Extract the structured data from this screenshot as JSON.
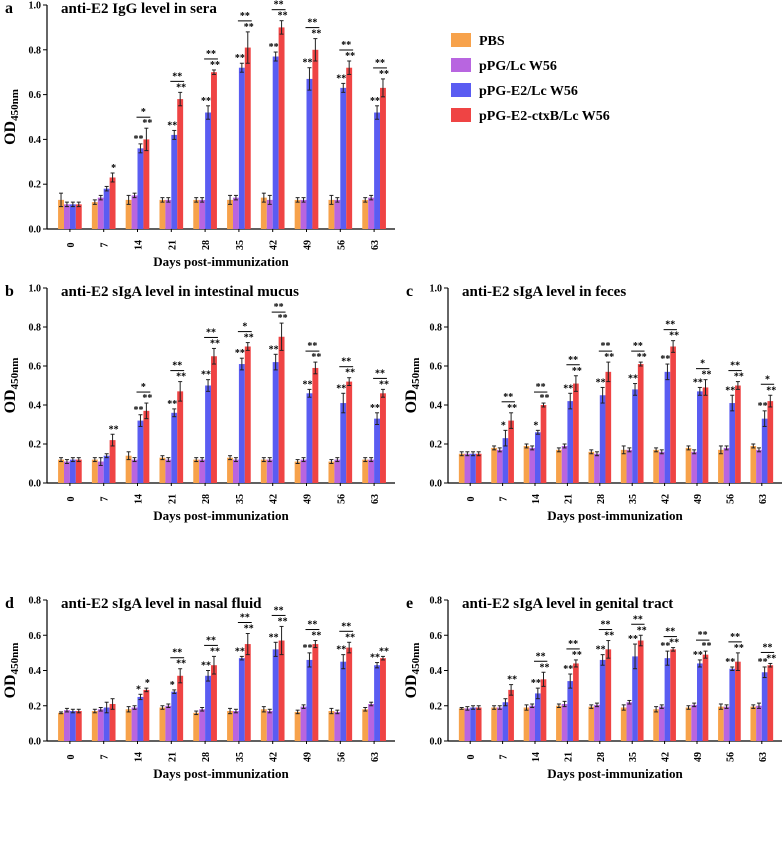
{
  "figure": {
    "legend": [
      {
        "name": "PBS",
        "color": "#F7A24B"
      },
      {
        "name": "pPG/Lc W56",
        "color": "#B865E0"
      },
      {
        "name": "pPG-E2/Lc W56",
        "color": "#5A5CF2"
      },
      {
        "name": "pPG-E2-ctxB/Lc W56",
        "color": "#EF4444"
      }
    ]
  },
  "chart_data": [
    {
      "panel": "a",
      "type": "bar",
      "title": "anti-E2 IgG level in sera",
      "xlabel": "Days post-immunization",
      "ylabel": "OD",
      "ylabel_sub": "450nm",
      "ylim": [
        0,
        1.0
      ],
      "yticks": [
        "0.0",
        "0.2",
        "0.4",
        "0.6",
        "0.8",
        "1.0"
      ],
      "categories": [
        "0",
        "7",
        "14",
        "21",
        "28",
        "35",
        "42",
        "49",
        "56",
        "63"
      ],
      "series": [
        {
          "name": "PBS",
          "values": [
            0.13,
            0.12,
            0.13,
            0.13,
            0.13,
            0.13,
            0.14,
            0.13,
            0.13,
            0.13
          ],
          "errors": [
            0.03,
            0.01,
            0.02,
            0.01,
            0.01,
            0.02,
            0.02,
            0.01,
            0.02,
            0.01
          ]
        },
        {
          "name": "pPG/Lc W56",
          "values": [
            0.11,
            0.14,
            0.15,
            0.13,
            0.13,
            0.14,
            0.13,
            0.13,
            0.13,
            0.14
          ],
          "errors": [
            0.01,
            0.01,
            0.01,
            0.01,
            0.01,
            0.01,
            0.02,
            0.01,
            0.01,
            0.01
          ]
        },
        {
          "name": "pPG-E2/Lc W56",
          "values": [
            0.11,
            0.18,
            0.36,
            0.42,
            0.52,
            0.72,
            0.77,
            0.67,
            0.63,
            0.52
          ],
          "errors": [
            0.01,
            0.01,
            0.02,
            0.02,
            0.03,
            0.02,
            0.02,
            0.05,
            0.02,
            0.03
          ]
        },
        {
          "name": "pPG-E2-ctxB/Lc W56",
          "values": [
            0.11,
            0.23,
            0.4,
            0.58,
            0.7,
            0.81,
            0.9,
            0.8,
            0.72,
            0.63
          ],
          "errors": [
            0.01,
            0.02,
            0.05,
            0.03,
            0.01,
            0.07,
            0.03,
            0.05,
            0.03,
            0.04
          ]
        }
      ],
      "significance": [
        {
          "c": null,
          "g": "",
          "r": ""
        },
        {
          "c": null,
          "g": "",
          "r": "*"
        },
        {
          "c": "*",
          "g": "**",
          "r": "**"
        },
        {
          "c": "**",
          "g": "**",
          "r": "**"
        },
        {
          "c": "**",
          "g": "**",
          "r": "**"
        },
        {
          "c": "**",
          "g": "**",
          "r": "**"
        },
        {
          "c": "**",
          "g": "**",
          "r": "**"
        },
        {
          "c": "**",
          "g": "**",
          "r": "**"
        },
        {
          "c": "**",
          "g": "**",
          "r": "**"
        },
        {
          "c": "**",
          "g": "**",
          "r": "**"
        }
      ]
    },
    {
      "panel": "b",
      "type": "bar",
      "title": "anti-E2 sIgA level in intestinal mucus",
      "xlabel": "Days post-immunization",
      "ylabel": "OD",
      "ylabel_sub": "450nm",
      "ylim": [
        0,
        1.0
      ],
      "yticks": [
        "0.0",
        "0.2",
        "0.4",
        "0.6",
        "0.8",
        "1.0"
      ],
      "categories": [
        "0",
        "7",
        "14",
        "21",
        "28",
        "35",
        "42",
        "49",
        "56",
        "63"
      ],
      "series": [
        {
          "name": "PBS",
          "values": [
            0.12,
            0.12,
            0.14,
            0.13,
            0.12,
            0.13,
            0.12,
            0.11,
            0.11,
            0.12
          ],
          "errors": [
            0.01,
            0.01,
            0.02,
            0.01,
            0.01,
            0.01,
            0.01,
            0.01,
            0.01,
            0.01
          ]
        },
        {
          "name": "pPG/Lc W56",
          "values": [
            0.11,
            0.11,
            0.12,
            0.12,
            0.12,
            0.12,
            0.12,
            0.12,
            0.12,
            0.12
          ],
          "errors": [
            0.01,
            0.02,
            0.01,
            0.01,
            0.01,
            0.01,
            0.01,
            0.01,
            0.01,
            0.01
          ]
        },
        {
          "name": "pPG-E2/Lc W56",
          "values": [
            0.12,
            0.14,
            0.32,
            0.36,
            0.5,
            0.61,
            0.62,
            0.46,
            0.41,
            0.33
          ],
          "errors": [
            0.01,
            0.01,
            0.03,
            0.02,
            0.03,
            0.03,
            0.04,
            0.02,
            0.05,
            0.03
          ]
        },
        {
          "name": "pPG-E2-ctxB/Lc W56",
          "values": [
            0.12,
            0.22,
            0.37,
            0.47,
            0.65,
            0.7,
            0.75,
            0.59,
            0.52,
            0.46
          ],
          "errors": [
            0.01,
            0.03,
            0.04,
            0.05,
            0.04,
            0.02,
            0.07,
            0.03,
            0.02,
            0.02
          ]
        }
      ],
      "significance": [
        {
          "c": null,
          "g": "",
          "r": ""
        },
        {
          "c": null,
          "g": "",
          "r": "**"
        },
        {
          "c": "*",
          "g": "**",
          "r": "**"
        },
        {
          "c": "**",
          "g": "**",
          "r": "**"
        },
        {
          "c": "**",
          "g": "**",
          "r": "**"
        },
        {
          "c": "*",
          "g": "**",
          "r": "**"
        },
        {
          "c": "**",
          "g": "**",
          "r": "**"
        },
        {
          "c": "**",
          "g": "**",
          "r": "**"
        },
        {
          "c": "**",
          "g": "**",
          "r": "**"
        },
        {
          "c": "**",
          "g": "**",
          "r": "**"
        }
      ]
    },
    {
      "panel": "c",
      "type": "bar",
      "title": "anti-E2 sIgA level in feces",
      "xlabel": "Days post-immunization",
      "ylabel": "OD",
      "ylabel_sub": "450nm",
      "ylim": [
        0,
        1.0
      ],
      "yticks": [
        "0.0",
        "0.2",
        "0.4",
        "0.6",
        "0.8",
        "1.0"
      ],
      "categories": [
        "0",
        "7",
        "14",
        "21",
        "28",
        "35",
        "42",
        "49",
        "56",
        "63"
      ],
      "series": [
        {
          "name": "PBS",
          "values": [
            0.15,
            0.18,
            0.19,
            0.17,
            0.16,
            0.17,
            0.17,
            0.18,
            0.17,
            0.19
          ],
          "errors": [
            0.01,
            0.01,
            0.01,
            0.01,
            0.01,
            0.02,
            0.01,
            0.01,
            0.02,
            0.01
          ]
        },
        {
          "name": "pPG/Lc W56",
          "values": [
            0.15,
            0.17,
            0.18,
            0.19,
            0.15,
            0.17,
            0.16,
            0.16,
            0.18,
            0.17
          ],
          "errors": [
            0.01,
            0.01,
            0.01,
            0.01,
            0.01,
            0.01,
            0.01,
            0.01,
            0.01,
            0.01
          ]
        },
        {
          "name": "pPG-E2/Lc W56",
          "values": [
            0.15,
            0.23,
            0.26,
            0.42,
            0.45,
            0.48,
            0.57,
            0.47,
            0.41,
            0.33
          ],
          "errors": [
            0.01,
            0.04,
            0.01,
            0.04,
            0.04,
            0.03,
            0.04,
            0.02,
            0.04,
            0.04
          ]
        },
        {
          "name": "pPG-E2-ctxB/Lc W56",
          "values": [
            0.15,
            0.32,
            0.4,
            0.51,
            0.57,
            0.61,
            0.7,
            0.49,
            0.5,
            0.42
          ],
          "errors": [
            0.01,
            0.04,
            0.01,
            0.04,
            0.05,
            0.01,
            0.03,
            0.04,
            0.02,
            0.03
          ]
        }
      ],
      "significance": [
        {
          "c": null,
          "g": "",
          "r": ""
        },
        {
          "c": "**",
          "g": "*",
          "r": "**"
        },
        {
          "c": "**",
          "g": "*",
          "r": "**"
        },
        {
          "c": "**",
          "g": "**",
          "r": "**"
        },
        {
          "c": "**",
          "g": "**",
          "r": "**"
        },
        {
          "c": "**",
          "g": "**",
          "r": "**"
        },
        {
          "c": "**",
          "g": "**",
          "r": "**"
        },
        {
          "c": "*",
          "g": "**",
          "r": "**"
        },
        {
          "c": "**",
          "g": "**",
          "r": "**"
        },
        {
          "c": "*",
          "g": "**",
          "r": "**"
        }
      ]
    },
    {
      "panel": "d",
      "type": "bar",
      "title": "anti-E2 sIgA level in nasal fluid",
      "xlabel": "Days post-immunization",
      "ylabel": "OD",
      "ylabel_sub": "450nm",
      "ylim": [
        0,
        0.8
      ],
      "yticks": [
        "0.0",
        "0.2",
        "0.4",
        "0.6",
        "0.8"
      ],
      "categories": [
        "0",
        "7",
        "14",
        "21",
        "28",
        "35",
        "42",
        "49",
        "56",
        "63"
      ],
      "series": [
        {
          "name": "PBS",
          "values": [
            0.16,
            0.17,
            0.18,
            0.19,
            0.16,
            0.17,
            0.18,
            0.165,
            0.17,
            0.18
          ],
          "errors": [
            0.005,
            0.01,
            0.015,
            0.01,
            0.01,
            0.015,
            0.015,
            0.01,
            0.015,
            0.01
          ]
        },
        {
          "name": "pPG/Lc W56",
          "values": [
            0.175,
            0.18,
            0.19,
            0.2,
            0.18,
            0.17,
            0.17,
            0.195,
            0.165,
            0.21
          ],
          "errors": [
            0.01,
            0.01,
            0.01,
            0.01,
            0.01,
            0.01,
            0.01,
            0.01,
            0.01,
            0.01
          ]
        },
        {
          "name": "pPG-E2/Lc W56",
          "values": [
            0.17,
            0.19,
            0.25,
            0.28,
            0.37,
            0.47,
            0.52,
            0.46,
            0.45,
            0.43
          ],
          "errors": [
            0.01,
            0.03,
            0.015,
            0.01,
            0.03,
            0.01,
            0.04,
            0.04,
            0.04,
            0.015
          ]
        },
        {
          "name": "pPG-E2-ctxB/Lc W56",
          "values": [
            0.17,
            0.21,
            0.29,
            0.37,
            0.43,
            0.55,
            0.57,
            0.55,
            0.53,
            0.47
          ],
          "errors": [
            0.01,
            0.03,
            0.01,
            0.04,
            0.05,
            0.06,
            0.08,
            0.02,
            0.03,
            0.01
          ]
        }
      ],
      "significance": [
        {
          "c": null,
          "g": "",
          "r": ""
        },
        {
          "c": null,
          "g": "",
          "r": ""
        },
        {
          "c": null,
          "g": "*",
          "r": "*"
        },
        {
          "c": "**",
          "g": "*",
          "r": "**"
        },
        {
          "c": "**",
          "g": "**",
          "r": "**"
        },
        {
          "c": "**",
          "g": "**",
          "r": "**"
        },
        {
          "c": "**",
          "g": "**",
          "r": "**"
        },
        {
          "c": "**",
          "g": "**",
          "r": "**"
        },
        {
          "c": "**",
          "g": "**",
          "r": "**"
        },
        {
          "c": null,
          "g": "**",
          "r": "**"
        }
      ]
    },
    {
      "panel": "e",
      "type": "bar",
      "title": "anti-E2 sIgA level in genital tract",
      "xlabel": "Days post-immunization",
      "ylabel": "OD",
      "ylabel_sub": "450nm",
      "ylim": [
        0,
        0.8
      ],
      "yticks": [
        "0.0",
        "0.2",
        "0.4",
        "0.6",
        "0.8"
      ],
      "categories": [
        "0",
        "7",
        "14",
        "21",
        "28",
        "35",
        "42",
        "49",
        "56",
        "63"
      ],
      "series": [
        {
          "name": "PBS",
          "values": [
            0.185,
            0.19,
            0.19,
            0.2,
            0.195,
            0.19,
            0.18,
            0.19,
            0.195,
            0.195
          ],
          "errors": [
            0.005,
            0.01,
            0.015,
            0.01,
            0.01,
            0.015,
            0.015,
            0.01,
            0.015,
            0.01
          ]
        },
        {
          "name": "pPG/Lc W56",
          "values": [
            0.185,
            0.19,
            0.2,
            0.21,
            0.205,
            0.22,
            0.195,
            0.205,
            0.195,
            0.2
          ],
          "errors": [
            0.01,
            0.01,
            0.01,
            0.015,
            0.01,
            0.01,
            0.01,
            0.01,
            0.01,
            0.015
          ]
        },
        {
          "name": "pPG-E2/Lc W56",
          "values": [
            0.19,
            0.22,
            0.27,
            0.34,
            0.46,
            0.48,
            0.47,
            0.44,
            0.41,
            0.39
          ],
          "errors": [
            0.01,
            0.02,
            0.03,
            0.04,
            0.03,
            0.07,
            0.04,
            0.02,
            0.01,
            0.03
          ]
        },
        {
          "name": "pPG-E2-ctxB/Lc W56",
          "values": [
            0.19,
            0.29,
            0.35,
            0.44,
            0.52,
            0.57,
            0.52,
            0.49,
            0.45,
            0.43
          ],
          "errors": [
            0.01,
            0.03,
            0.04,
            0.02,
            0.05,
            0.03,
            0.01,
            0.02,
            0.05,
            0.01
          ]
        }
      ],
      "significance": [
        {
          "c": null,
          "g": "",
          "r": ""
        },
        {
          "c": null,
          "g": "",
          "r": "**"
        },
        {
          "c": "**",
          "g": "**",
          "r": "**"
        },
        {
          "c": "**",
          "g": "**",
          "r": "**"
        },
        {
          "c": "**",
          "g": "**",
          "r": "**"
        },
        {
          "c": "**",
          "g": "**",
          "r": "**"
        },
        {
          "c": "**",
          "g": "**",
          "r": "**"
        },
        {
          "c": "**",
          "g": "**",
          "r": "**"
        },
        {
          "c": "**",
          "g": "**",
          "r": "**"
        },
        {
          "c": "**",
          "g": "**",
          "r": "**"
        }
      ]
    }
  ]
}
